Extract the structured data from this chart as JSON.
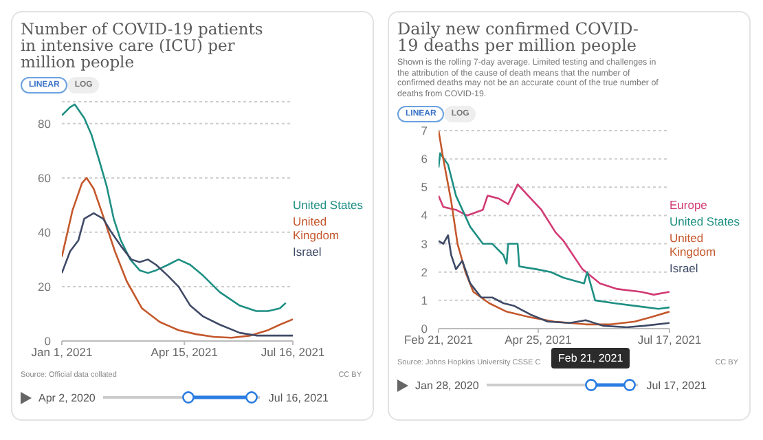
{
  "chart_data": [
    {
      "type": "line",
      "title": "Number of COVID-19 patients in intensive care (ICU) per million people",
      "xlim": [
        "2021-01-01",
        "2021-07-16"
      ],
      "xticks": [
        {
          "value": "2021-01-01",
          "label": "Jan 1, 2021"
        },
        {
          "value": "2021-04-15",
          "label": "Apr 15, 2021"
        },
        {
          "value": "2021-07-16",
          "label": "Jul 16, 2021"
        }
      ],
      "ylim": [
        0,
        88
      ],
      "yticks": [
        0,
        20,
        40,
        60,
        80
      ],
      "grid": "y",
      "legend": "right",
      "marker": "none",
      "line_style": "solid",
      "series": [
        {
          "name": "United States",
          "color": "#1e8f83",
          "x": [
            "2021-01-01",
            "2021-01-08",
            "2021-01-12",
            "2021-01-20",
            "2021-01-26",
            "2021-02-02",
            "2021-02-08",
            "2021-02-14",
            "2021-02-20",
            "2021-02-28",
            "2021-03-08",
            "2021-03-15",
            "2021-03-22",
            "2021-04-01",
            "2021-04-10",
            "2021-04-20",
            "2021-05-01",
            "2021-05-15",
            "2021-06-01",
            "2021-06-15",
            "2021-06-25",
            "2021-07-05",
            "2021-07-10"
          ],
          "values": [
            83,
            86,
            87,
            82,
            76,
            66,
            57,
            45,
            37,
            30,
            26,
            25,
            26,
            28,
            30,
            28,
            24,
            18,
            13,
            11,
            11,
            12,
            14
          ]
        },
        {
          "name": "United Kingdom",
          "color": "#c4572b",
          "x": [
            "2021-01-01",
            "2021-01-10",
            "2021-01-18",
            "2021-01-22",
            "2021-01-28",
            "2021-02-05",
            "2021-02-15",
            "2021-02-25",
            "2021-03-10",
            "2021-03-25",
            "2021-04-10",
            "2021-04-25",
            "2021-05-10",
            "2021-05-25",
            "2021-06-10",
            "2021-06-25",
            "2021-07-05",
            "2021-07-16"
          ],
          "values": [
            31,
            48,
            58,
            60,
            56,
            46,
            33,
            22,
            12,
            7,
            4,
            2.5,
            1.5,
            1.2,
            2,
            4,
            6,
            8
          ]
        },
        {
          "name": "Israel",
          "color": "#3f4a66",
          "x": [
            "2021-01-01",
            "2021-01-08",
            "2021-01-15",
            "2021-01-20",
            "2021-01-28",
            "2021-02-05",
            "2021-02-12",
            "2021-02-20",
            "2021-03-01",
            "2021-03-08",
            "2021-03-15",
            "2021-03-22",
            "2021-04-01",
            "2021-04-10",
            "2021-04-20",
            "2021-05-01",
            "2021-05-15",
            "2021-06-01",
            "2021-06-15",
            "2021-07-01",
            "2021-07-16"
          ],
          "values": [
            25,
            33,
            37,
            45,
            47,
            45,
            40,
            35,
            30,
            29,
            30,
            28,
            24,
            20,
            13,
            9,
            6,
            3,
            2,
            2,
            2
          ]
        }
      ],
      "annotations": [
        "LINEAR",
        "LOG",
        "Source: Official data collated",
        "CC BY",
        "Apr 2, 2020",
        "Jul 16, 2021"
      ]
    },
    {
      "type": "line",
      "title": "Daily new confirmed COVID-19 deaths per million people",
      "subtitle": "Shown is the rolling 7-day average. Limited testing and challenges in the attribution of the cause of death means that the number of confirmed deaths may not be an accurate count of the true number of deaths from COVID-19.",
      "xlim": [
        "2021-02-21",
        "2021-07-17"
      ],
      "xticks": [
        {
          "value": "2021-02-21",
          "label": "Feb 21, 2021"
        },
        {
          "value": "2021-04-25",
          "label": "Apr 25, 2021"
        },
        {
          "value": "2021-07-17",
          "label": "Jul 17, 2021"
        }
      ],
      "ylim": [
        0,
        7
      ],
      "yticks": [
        0,
        1,
        2,
        3,
        4,
        5,
        6,
        7
      ],
      "grid": "y",
      "legend": "right",
      "marker": "none",
      "line_style": "solid",
      "series": [
        {
          "name": "Europe",
          "color": "#d23a74",
          "x": [
            "2021-02-21",
            "2021-02-24",
            "2021-03-04",
            "2021-03-11",
            "2021-03-21",
            "2021-03-24",
            "2021-03-31",
            "2021-04-06",
            "2021-04-12",
            "2021-04-22",
            "2021-04-27",
            "2021-05-06",
            "2021-05-11",
            "2021-05-23",
            "2021-06-03",
            "2021-06-14",
            "2021-06-29",
            "2021-07-07",
            "2021-07-17"
          ],
          "values": [
            4.7,
            4.3,
            4.2,
            4.0,
            4.2,
            4.7,
            4.6,
            4.4,
            5.1,
            4.5,
            4.2,
            3.4,
            3.1,
            2.1,
            1.6,
            1.4,
            1.3,
            1.2,
            1.3
          ]
        },
        {
          "name": "United States",
          "color": "#1e8f83",
          "x": [
            "2021-02-21",
            "2021-02-22",
            "2021-02-27",
            "2021-03-04",
            "2021-03-13",
            "2021-03-21",
            "2021-03-27",
            "2021-04-03",
            "2021-04-05",
            "2021-04-06",
            "2021-04-12",
            "2021-04-13",
            "2021-04-24",
            "2021-05-03",
            "2021-05-11",
            "2021-05-24",
            "2021-05-26",
            "2021-05-31",
            "2021-06-12",
            "2021-06-26",
            "2021-07-10",
            "2021-07-17"
          ],
          "values": [
            5.7,
            6.2,
            5.8,
            4.7,
            3.6,
            3.0,
            3.0,
            2.6,
            2.3,
            3.0,
            3.0,
            2.2,
            2.1,
            2.0,
            1.8,
            1.6,
            2.0,
            1.0,
            0.9,
            0.8,
            0.7,
            0.75
          ]
        },
        {
          "name": "United Kingdom",
          "color": "#c4572b",
          "x": [
            "2021-02-21",
            "2021-02-24",
            "2021-03-01",
            "2021-03-05",
            "2021-03-10",
            "2021-03-15",
            "2021-03-25",
            "2021-04-05",
            "2021-04-20",
            "2021-05-05",
            "2021-05-25",
            "2021-06-10",
            "2021-06-25",
            "2021-07-05",
            "2021-07-17"
          ],
          "values": [
            7.0,
            6.0,
            4.5,
            3.0,
            2.0,
            1.3,
            0.9,
            0.6,
            0.4,
            0.25,
            0.15,
            0.15,
            0.25,
            0.4,
            0.6
          ]
        },
        {
          "name": "Israel",
          "color": "#3f4a66",
          "x": [
            "2021-02-21",
            "2021-02-24",
            "2021-02-27",
            "2021-03-01",
            "2021-03-04",
            "2021-03-08",
            "2021-03-13",
            "2021-03-20",
            "2021-03-27",
            "2021-04-03",
            "2021-04-10",
            "2021-04-20",
            "2021-05-01",
            "2021-05-15",
            "2021-05-25",
            "2021-06-05",
            "2021-06-20",
            "2021-07-01",
            "2021-07-17"
          ],
          "values": [
            3.1,
            3.0,
            3.3,
            2.6,
            2.1,
            2.4,
            1.6,
            1.1,
            1.1,
            0.9,
            0.8,
            0.5,
            0.25,
            0.2,
            0.3,
            0.1,
            0.05,
            0.1,
            0.2
          ]
        }
      ],
      "annotations": [
        "LINEAR",
        "LOG",
        "Source: Johns Hopkins University CSSE C",
        "CC BY",
        "Jan 28, 2020",
        "Jul 17, 2021",
        "Feb 21, 2021"
      ]
    }
  ]
}
